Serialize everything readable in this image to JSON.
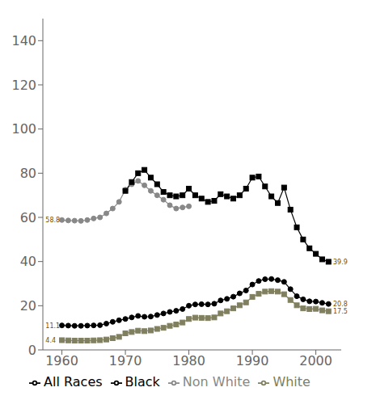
{
  "chart_data": {
    "type": "line",
    "title": "",
    "x": [
      1960,
      1961,
      1962,
      1963,
      1964,
      1965,
      1966,
      1967,
      1968,
      1969,
      1970,
      1971,
      1972,
      1973,
      1974,
      1975,
      1976,
      1977,
      1978,
      1979,
      1980,
      1981,
      1982,
      1983,
      1984,
      1985,
      1986,
      1987,
      1988,
      1989,
      1990,
      1991,
      1992,
      1993,
      1994,
      1995,
      1996,
      1997,
      1998,
      1999,
      2000,
      2001,
      2002
    ],
    "xlim": [
      1957,
      2004
    ],
    "xticks": [
      1960,
      1970,
      1980,
      1990,
      2000
    ],
    "ylim": [
      0,
      150
    ],
    "yticks": [
      0,
      20,
      40,
      60,
      80,
      100,
      120,
      140
    ],
    "grid": false,
    "legend": "bottom",
    "series": [
      {
        "name": "All Races",
        "color": "#000000",
        "marker": "circle",
        "values": [
          11.1,
          11.0,
          10.9,
          10.9,
          11.0,
          11.1,
          11.2,
          11.9,
          12.7,
          13.4,
          14.0,
          14.7,
          15.4,
          15.0,
          15.1,
          15.8,
          16.5,
          17.2,
          17.7,
          18.5,
          20.0,
          20.6,
          20.7,
          20.6,
          20.9,
          22.4,
          23.1,
          24.1,
          25.6,
          26.9,
          29.6,
          31.2,
          32.0,
          32.1,
          31.6,
          30.8,
          27.5,
          24.3,
          22.9,
          22.0,
          21.9,
          21.3,
          20.8
        ]
      },
      {
        "name": "White",
        "color": "#808060",
        "marker": "square",
        "values": [
          4.4,
          4.3,
          4.2,
          4.2,
          4.2,
          4.3,
          4.4,
          4.7,
          5.3,
          5.9,
          7.5,
          8.1,
          8.7,
          8.5,
          8.8,
          9.5,
          10.0,
          10.9,
          11.5,
          12.4,
          14.0,
          14.6,
          14.5,
          14.4,
          14.7,
          16.5,
          17.5,
          18.8,
          20.2,
          21.5,
          24.0,
          25.4,
          26.4,
          26.6,
          26.4,
          25.2,
          22.6,
          20.2,
          18.8,
          18.5,
          18.6,
          17.9,
          17.5
        ]
      },
      {
        "name": "Non White",
        "color": "#888888",
        "marker": "circle",
        "values": [
          58.8,
          58.6,
          58.5,
          58.4,
          58.8,
          59.5,
          60.0,
          61.8,
          64.0,
          67.0,
          72.5,
          75.0,
          76.5,
          74.5,
          72.0,
          70.0,
          68.0,
          65.5,
          64.0,
          64.5,
          65.0,
          null,
          null,
          null,
          null,
          null,
          null,
          null,
          null,
          null,
          null,
          null,
          null,
          null,
          null,
          null,
          null,
          null,
          null,
          null,
          null,
          null,
          null
        ]
      },
      {
        "name": "Black",
        "color": "#000000",
        "marker": "square",
        "values": [
          null,
          null,
          null,
          null,
          null,
          null,
          null,
          null,
          null,
          null,
          72.0,
          76.0,
          80.0,
          81.5,
          78.0,
          75.0,
          71.5,
          70.0,
          69.5,
          70.0,
          73.0,
          70.0,
          68.5,
          67.0,
          67.5,
          70.5,
          69.5,
          68.5,
          70.0,
          73.0,
          78.0,
          78.5,
          74.0,
          69.5,
          66.5,
          73.5,
          63.5,
          55.5,
          50.0,
          46.0,
          43.5,
          41.0,
          39.9
        ]
      }
    ],
    "annotations": [
      {
        "x": 1957.3,
        "y": 58.8,
        "text": "58.8",
        "color": "#7b4f00"
      },
      {
        "x": 1957.3,
        "y": 11.1,
        "text": "11.1",
        "color": "#7b4f00"
      },
      {
        "x": 1957.3,
        "y": 4.4,
        "text": "4.4",
        "color": "#7b4f00"
      },
      {
        "x": 2002.6,
        "y": 39.9,
        "text": "39.9",
        "color": "#7b4f00"
      },
      {
        "x": 2002.6,
        "y": 20.8,
        "text": "20.8",
        "color": "#7b4f00"
      },
      {
        "x": 2002.6,
        "y": 17.5,
        "text": "17.5",
        "color": "#7b4f00"
      }
    ]
  }
}
